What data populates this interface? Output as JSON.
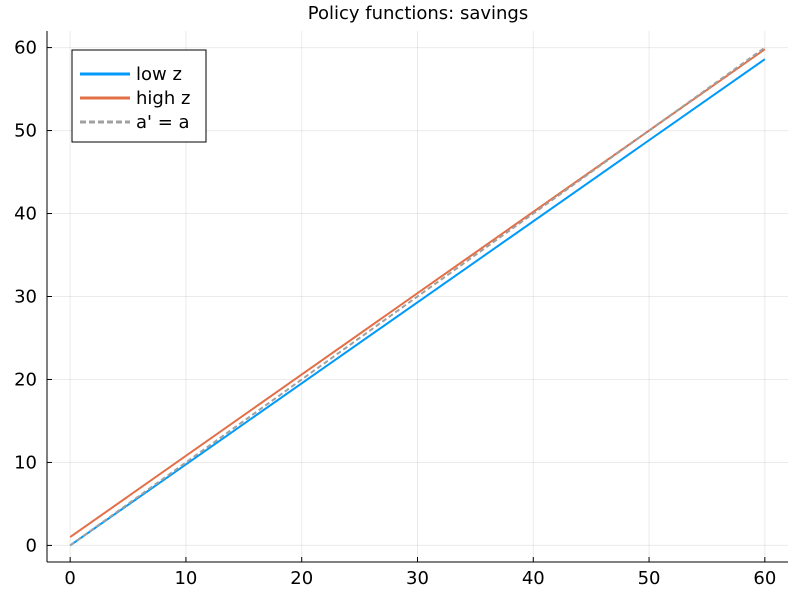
{
  "chart_data": {
    "type": "line",
    "title": "Policy functions: savings",
    "xlabel": "",
    "ylabel": "",
    "xlim": [
      -2,
      62
    ],
    "ylim": [
      -2,
      62
    ],
    "xticks": [
      0,
      10,
      20,
      30,
      40,
      50,
      60
    ],
    "yticks": [
      0,
      10,
      20,
      30,
      40,
      50,
      60
    ],
    "grid": true,
    "legend_position": "top-left",
    "series": [
      {
        "name": "low z",
        "color": "#009af9",
        "style": "solid",
        "x": [
          0,
          60
        ],
        "y": [
          0,
          58.6
        ]
      },
      {
        "name": "high z",
        "color": "#e26f46",
        "style": "solid",
        "x": [
          0,
          60
        ],
        "y": [
          1.0,
          59.8
        ]
      },
      {
        "name": "a' = a",
        "color": "#a0a0a0",
        "style": "dashed",
        "x": [
          0,
          60
        ],
        "y": [
          0,
          60
        ]
      }
    ]
  }
}
